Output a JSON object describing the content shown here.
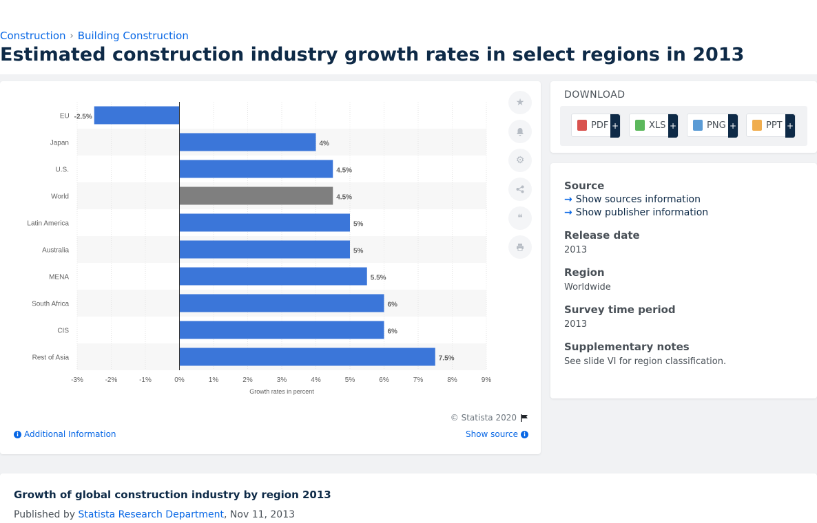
{
  "breadcrumb": {
    "items": [
      "Construction",
      "Building Construction"
    ],
    "separator": "›"
  },
  "page_title": "Estimated construction industry growth rates in select regions in 2013",
  "chart_data": {
    "type": "bar",
    "orientation": "horizontal",
    "categories": [
      "EU",
      "Japan",
      "U.S.",
      "World",
      "Latin America",
      "Australia",
      "MENA",
      "South Africa",
      "CIS",
      "Rest of Asia"
    ],
    "values": [
      -2.5,
      4,
      4.5,
      4.5,
      5,
      5,
      5.5,
      6,
      6,
      7.5
    ],
    "data_labels": [
      "-2.5%",
      "4%",
      "4.5%",
      "4.5%",
      "5%",
      "5%",
      "5.5%",
      "6%",
      "6%",
      "7.5%"
    ],
    "highlight_category": "World",
    "xlabel": "Growth rates in percent",
    "xlim": [
      -3,
      9
    ],
    "xticks": [
      -3,
      -2,
      -1,
      0,
      1,
      2,
      3,
      4,
      5,
      6,
      7,
      8,
      9
    ],
    "xtick_labels": [
      "-3%",
      "-2%",
      "-1%",
      "0%",
      "1%",
      "2%",
      "3%",
      "4%",
      "5%",
      "6%",
      "7%",
      "8%",
      "9%"
    ],
    "grid": true,
    "colors": {
      "bar": "#3b76d9",
      "highlight": "#7f7f7f"
    }
  },
  "chart_footer": {
    "copyright": "© Statista 2020",
    "additional_info": "Additional Information",
    "show_source": "Show source"
  },
  "toolbar": {
    "icons": [
      "star-icon",
      "bell-icon",
      "gear-icon",
      "share-icon",
      "quote-icon",
      "print-icon"
    ]
  },
  "download": {
    "title": "DOWNLOAD",
    "buttons": [
      {
        "label": "PDF",
        "color": "#d9534f"
      },
      {
        "label": "XLS",
        "color": "#5cb85c"
      },
      {
        "label": "PNG",
        "color": "#5b9bd5"
      },
      {
        "label": "PPT",
        "color": "#f0ad4e"
      }
    ],
    "plus": "+"
  },
  "info": {
    "source_label": "Source",
    "show_sources": "Show sources information",
    "show_publisher": "Show publisher information",
    "release_date_label": "Release date",
    "release_date": "2013",
    "region_label": "Region",
    "region": "Worldwide",
    "survey_label": "Survey time period",
    "survey": "2013",
    "notes_label": "Supplementary notes",
    "notes": "See slide VI for region classification."
  },
  "bottom": {
    "title": "Growth of global construction industry by region 2013",
    "published_prefix": "Published by",
    "publisher": "Statista Research Department",
    "date": ", Nov 11, 2013"
  }
}
